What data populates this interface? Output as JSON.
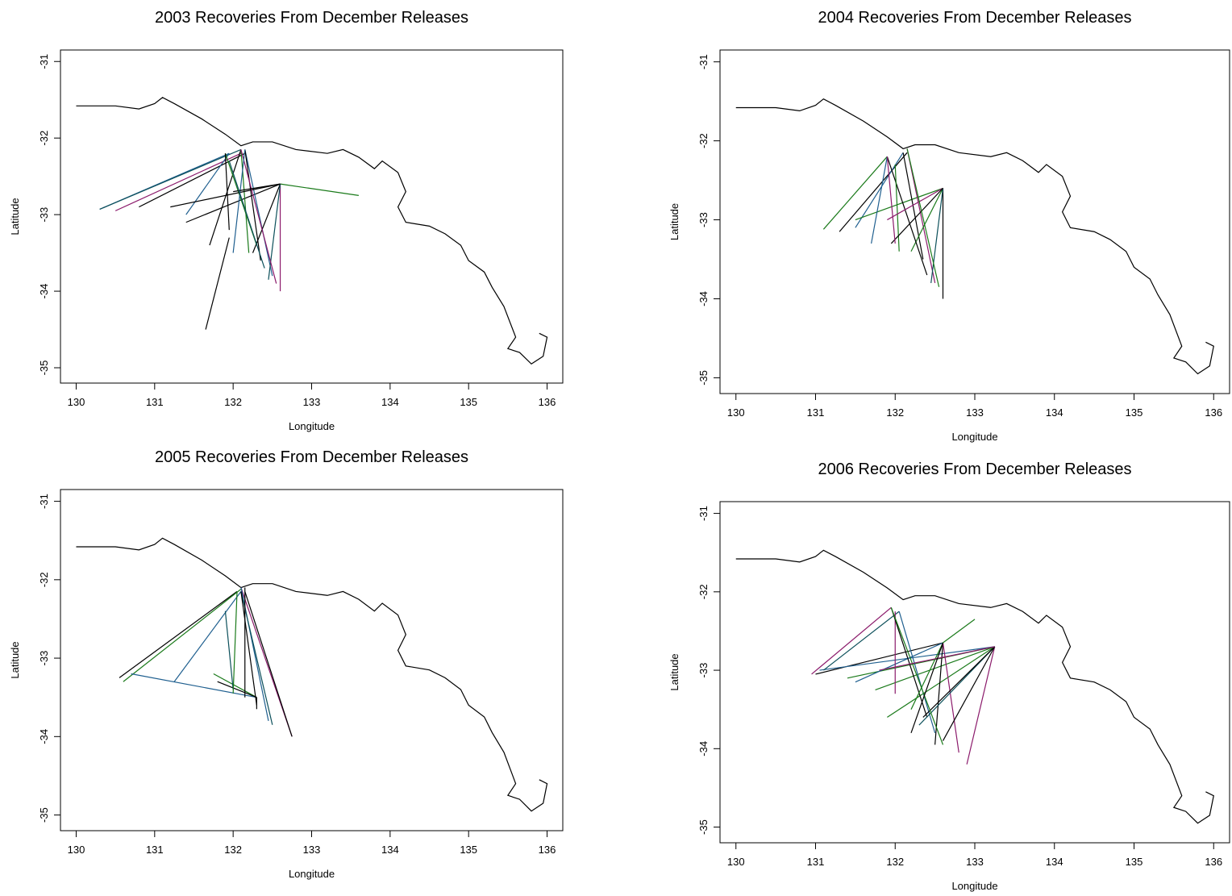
{
  "coastline": {
    "x": [
      130.0,
      130.5,
      130.8,
      131.0,
      131.1,
      131.25,
      131.6,
      131.9,
      132.1,
      132.25,
      132.5,
      132.8,
      133.2,
      133.4,
      133.6,
      133.8,
      133.9,
      134.1,
      134.2,
      134.1,
      134.2,
      134.5,
      134.7,
      134.9,
      135.0,
      135.2,
      135.3,
      135.45,
      135.6,
      135.5,
      135.65,
      135.8,
      135.95,
      136.0,
      135.9
    ],
    "y": [
      -31.58,
      -31.58,
      -31.62,
      -31.55,
      -31.47,
      -31.55,
      -31.75,
      -31.95,
      -32.1,
      -32.05,
      -32.05,
      -32.15,
      -32.2,
      -32.15,
      -32.25,
      -32.4,
      -32.3,
      -32.45,
      -32.7,
      -32.9,
      -33.1,
      -33.15,
      -33.25,
      -33.4,
      -33.6,
      -33.75,
      -33.95,
      -34.2,
      -34.6,
      -34.75,
      -34.8,
      -34.95,
      -34.85,
      -34.6,
      -34.55
    ]
  },
  "chart_data": [
    {
      "type": "segments",
      "title": "2003 Recoveries From December Releases",
      "x_label": "Longitude",
      "y_label": "Latitude",
      "xlim": [
        129.8,
        136.2
      ],
      "ylim": [
        -35.2,
        -30.85
      ],
      "xticks": [
        130,
        131,
        132,
        133,
        134,
        135,
        136
      ],
      "yticks": [
        -31,
        -32,
        -33,
        -34,
        -35
      ],
      "segments": [
        {
          "x": [
            130.3,
            131.95
          ],
          "y": [
            -32.93,
            -32.2
          ],
          "color": "#1f5f8f"
        },
        {
          "x": [
            130.3,
            132.1
          ],
          "y": [
            -32.93,
            -32.15
          ],
          "color": "#0b4f5a"
        },
        {
          "x": [
            130.5,
            132.1
          ],
          "y": [
            -32.95,
            -32.2
          ],
          "color": "#8b1a6b"
        },
        {
          "x": [
            130.8,
            132.15
          ],
          "y": [
            -32.9,
            -32.2
          ],
          "color": "#000000"
        },
        {
          "x": [
            131.4,
            132.6
          ],
          "y": [
            -33.1,
            -32.6
          ],
          "color": "#000000"
        },
        {
          "x": [
            131.4,
            131.95
          ],
          "y": [
            -33.0,
            -32.2
          ],
          "color": "#1f5f8f"
        },
        {
          "x": [
            131.7,
            132.1
          ],
          "y": [
            -33.4,
            -32.15
          ],
          "color": "#000000"
        },
        {
          "x": [
            131.65,
            131.95
          ],
          "y": [
            -34.5,
            -33.3
          ],
          "color": "#000000"
        },
        {
          "x": [
            132.6,
            133.6
          ],
          "y": [
            -32.6,
            -32.75
          ],
          "color": "#1a7a1a"
        },
        {
          "x": [
            132.1,
            132.2
          ],
          "y": [
            -32.15,
            -33.5
          ],
          "color": "#1a7a1a"
        },
        {
          "x": [
            132.15,
            132.5
          ],
          "y": [
            -32.15,
            -33.8
          ],
          "color": "#1f5f8f"
        },
        {
          "x": [
            132.15,
            132.35
          ],
          "y": [
            -32.15,
            -33.6
          ],
          "color": "#000000"
        },
        {
          "x": [
            132.6,
            132.6
          ],
          "y": [
            -32.6,
            -34.0
          ],
          "color": "#8b1a6b"
        },
        {
          "x": [
            132.6,
            132.25
          ],
          "y": [
            -32.6,
            -33.5
          ],
          "color": "#000000"
        },
        {
          "x": [
            132.6,
            132.45
          ],
          "y": [
            -32.6,
            -33.85
          ],
          "color": "#0b4f5a"
        },
        {
          "x": [
            131.9,
            132.3
          ],
          "y": [
            -32.2,
            -33.4
          ],
          "color": "#1a7a1a"
        },
        {
          "x": [
            131.9,
            131.95
          ],
          "y": [
            -32.2,
            -33.2
          ],
          "color": "#000000"
        },
        {
          "x": [
            131.2,
            132.6
          ],
          "y": [
            -32.9,
            -32.6
          ],
          "color": "#000000"
        },
        {
          "x": [
            132.1,
            132.55
          ],
          "y": [
            -32.15,
            -33.9
          ],
          "color": "#8b1a6b"
        },
        {
          "x": [
            132.15,
            132.0
          ],
          "y": [
            -32.15,
            -33.5
          ],
          "color": "#1f5f8f"
        },
        {
          "x": [
            132.6,
            132.0
          ],
          "y": [
            -32.6,
            -32.7
          ],
          "color": "#000000"
        },
        {
          "x": [
            131.95,
            132.4
          ],
          "y": [
            -32.3,
            -33.7
          ],
          "color": "#0b4f5a"
        }
      ]
    },
    {
      "type": "segments",
      "title": "2004 Recoveries From December Releases",
      "x_label": "Longitude",
      "y_label": "Latitude",
      "xlim": [
        129.8,
        136.2
      ],
      "ylim": [
        -35.2,
        -30.85
      ],
      "xticks": [
        130,
        131,
        132,
        133,
        134,
        135,
        136
      ],
      "yticks": [
        -31,
        -32,
        -33,
        -34,
        -35
      ],
      "segments": [
        {
          "x": [
            131.1,
            131.9
          ],
          "y": [
            -33.12,
            -32.2
          ],
          "color": "#1a7a1a"
        },
        {
          "x": [
            131.3,
            132.15
          ],
          "y": [
            -33.15,
            -32.15
          ],
          "color": "#000000"
        },
        {
          "x": [
            131.5,
            132.1
          ],
          "y": [
            -33.1,
            -32.15
          ],
          "color": "#1f5f8f"
        },
        {
          "x": [
            131.5,
            132.6
          ],
          "y": [
            -33.0,
            -32.6
          ],
          "color": "#1a7a1a"
        },
        {
          "x": [
            131.7,
            131.9
          ],
          "y": [
            -33.3,
            -32.2
          ],
          "color": "#1f5f8f"
        },
        {
          "x": [
            132.6,
            132.6
          ],
          "y": [
            -32.6,
            -34.0
          ],
          "color": "#000000"
        },
        {
          "x": [
            132.15,
            132.5
          ],
          "y": [
            -32.1,
            -33.8
          ],
          "color": "#8b1a6b"
        },
        {
          "x": [
            132.1,
            132.35
          ],
          "y": [
            -32.15,
            -33.5
          ],
          "color": "#000000"
        },
        {
          "x": [
            132.6,
            132.2
          ],
          "y": [
            -32.6,
            -33.4
          ],
          "color": "#1a7a1a"
        },
        {
          "x": [
            132.6,
            132.45
          ],
          "y": [
            -32.6,
            -33.8
          ],
          "color": "#0b4f5a"
        },
        {
          "x": [
            131.9,
            132.4
          ],
          "y": [
            -32.2,
            -33.7
          ],
          "color": "#000000"
        },
        {
          "x": [
            132.0,
            132.05
          ],
          "y": [
            -32.3,
            -33.4
          ],
          "color": "#1a7a1a"
        },
        {
          "x": [
            132.6,
            131.9
          ],
          "y": [
            -32.6,
            -33.0
          ],
          "color": "#8b1a6b"
        },
        {
          "x": [
            132.6,
            131.95
          ],
          "y": [
            -32.6,
            -33.3
          ],
          "color": "#000000"
        },
        {
          "x": [
            132.15,
            132.55
          ],
          "y": [
            -32.1,
            -33.85
          ],
          "color": "#1a7a1a"
        },
        {
          "x": [
            131.9,
            132.0
          ],
          "y": [
            -32.2,
            -33.3
          ],
          "color": "#8b1a6b"
        }
      ]
    },
    {
      "type": "segments",
      "title": "2005 Recoveries From December Releases",
      "x_label": "Longitude",
      "y_label": "Latitude",
      "xlim": [
        129.8,
        136.2
      ],
      "ylim": [
        -35.2,
        -30.85
      ],
      "xticks": [
        130,
        131,
        132,
        133,
        134,
        135,
        136
      ],
      "yticks": [
        -31,
        -32,
        -33,
        -34,
        -35
      ],
      "segments": [
        {
          "x": [
            130.55,
            132.05
          ],
          "y": [
            -33.25,
            -32.15
          ],
          "color": "#000000"
        },
        {
          "x": [
            130.6,
            132.1
          ],
          "y": [
            -33.3,
            -32.12
          ],
          "color": "#1a7a1a"
        },
        {
          "x": [
            130.7,
            132.3
          ],
          "y": [
            -33.2,
            -33.5
          ],
          "color": "#1f5f8f"
        },
        {
          "x": [
            131.25,
            132.1
          ],
          "y": [
            -33.3,
            -32.15
          ],
          "color": "#1f5f8f"
        },
        {
          "x": [
            132.1,
            132.75
          ],
          "y": [
            -32.1,
            -34.0
          ],
          "color": "#8b1a6b"
        },
        {
          "x": [
            132.15,
            132.75
          ],
          "y": [
            -32.15,
            -34.0
          ],
          "color": "#000000"
        },
        {
          "x": [
            132.1,
            132.45
          ],
          "y": [
            -32.1,
            -33.8
          ],
          "color": "#1f5f8f"
        },
        {
          "x": [
            132.1,
            132.5
          ],
          "y": [
            -32.15,
            -33.85
          ],
          "color": "#0b4f5a"
        },
        {
          "x": [
            131.75,
            132.3
          ],
          "y": [
            -33.2,
            -33.5
          ],
          "color": "#1a7a1a"
        },
        {
          "x": [
            131.8,
            132.3
          ],
          "y": [
            -33.3,
            -33.5
          ],
          "color": "#000000"
        },
        {
          "x": [
            132.1,
            132.3
          ],
          "y": [
            -32.15,
            -33.6
          ],
          "color": "#000000"
        },
        {
          "x": [
            131.9,
            132.0
          ],
          "y": [
            -32.4,
            -33.4
          ],
          "color": "#0b4f5a"
        },
        {
          "x": [
            132.05,
            132.0
          ],
          "y": [
            -32.15,
            -33.45
          ],
          "color": "#1a7a1a"
        },
        {
          "x": [
            132.15,
            132.15
          ],
          "y": [
            -32.1,
            -33.5
          ],
          "color": "#000000"
        },
        {
          "x": [
            132.3,
            132.3
          ],
          "y": [
            -33.5,
            -33.65
          ],
          "color": "#000000"
        }
      ]
    },
    {
      "type": "segments",
      "title": "2006 Recoveries From December Releases",
      "x_label": "Longitude",
      "y_label": "Latitude",
      "xlim": [
        129.8,
        136.2
      ],
      "ylim": [
        -35.2,
        -30.85
      ],
      "xticks": [
        130,
        131,
        132,
        133,
        134,
        135,
        136
      ],
      "yticks": [
        -31,
        -32,
        -33,
        -34,
        -35
      ],
      "segments": [
        {
          "x": [
            130.95,
            131.95
          ],
          "y": [
            -33.05,
            -32.2
          ],
          "color": "#8b1a6b"
        },
        {
          "x": [
            131.0,
            132.6
          ],
          "y": [
            -33.05,
            -32.65
          ],
          "color": "#000000"
        },
        {
          "x": [
            131.05,
            133.25
          ],
          "y": [
            -33.0,
            -32.7
          ],
          "color": "#1f5f8f"
        },
        {
          "x": [
            131.1,
            132.05
          ],
          "y": [
            -33.0,
            -32.25
          ],
          "color": "#0b4f5a"
        },
        {
          "x": [
            131.4,
            133.25
          ],
          "y": [
            -33.1,
            -32.7
          ],
          "color": "#1a7a1a"
        },
        {
          "x": [
            131.5,
            132.6
          ],
          "y": [
            -33.15,
            -32.65
          ],
          "color": "#1f5f8f"
        },
        {
          "x": [
            131.75,
            133.25
          ],
          "y": [
            -33.25,
            -32.7
          ],
          "color": "#1a7a1a"
        },
        {
          "x": [
            131.9,
            133.25
          ],
          "y": [
            -33.6,
            -32.7
          ],
          "color": "#1a7a1a"
        },
        {
          "x": [
            132.6,
            133.0
          ],
          "y": [
            -32.65,
            -32.35
          ],
          "color": "#1a7a1a"
        },
        {
          "x": [
            132.0,
            132.0
          ],
          "y": [
            -33.3,
            -32.25
          ],
          "color": "#8b1a6b"
        },
        {
          "x": [
            131.95,
            132.4
          ],
          "y": [
            -32.2,
            -33.6
          ],
          "color": "#000000"
        },
        {
          "x": [
            132.05,
            132.5
          ],
          "y": [
            -32.25,
            -33.8
          ],
          "color": "#1f5f8f"
        },
        {
          "x": [
            132.6,
            132.5
          ],
          "y": [
            -32.65,
            -33.95
          ],
          "color": "#000000"
        },
        {
          "x": [
            132.6,
            132.8
          ],
          "y": [
            -32.65,
            -34.05
          ],
          "color": "#8b1a6b"
        },
        {
          "x": [
            133.25,
            132.9
          ],
          "y": [
            -32.7,
            -34.2
          ],
          "color": "#8b1a6b"
        },
        {
          "x": [
            133.25,
            132.6
          ],
          "y": [
            -32.7,
            -33.9
          ],
          "color": "#000000"
        },
        {
          "x": [
            133.25,
            132.3
          ],
          "y": [
            -32.7,
            -33.7
          ],
          "color": "#0b4f5a"
        },
        {
          "x": [
            133.25,
            132.35
          ],
          "y": [
            -32.7,
            -33.6
          ],
          "color": "#000000"
        },
        {
          "x": [
            131.95,
            132.6
          ],
          "y": [
            -32.2,
            -33.95
          ],
          "color": "#1a7a1a"
        },
        {
          "x": [
            132.6,
            132.2
          ],
          "y": [
            -32.65,
            -33.5
          ],
          "color": "#1a7a1a"
        },
        {
          "x": [
            133.25,
            131.8
          ],
          "y": [
            -32.7,
            -33.0
          ],
          "color": "#8b1a6b"
        },
        {
          "x": [
            132.6,
            132.2
          ],
          "y": [
            -32.65,
            -33.8
          ],
          "color": "#000000"
        }
      ]
    }
  ]
}
